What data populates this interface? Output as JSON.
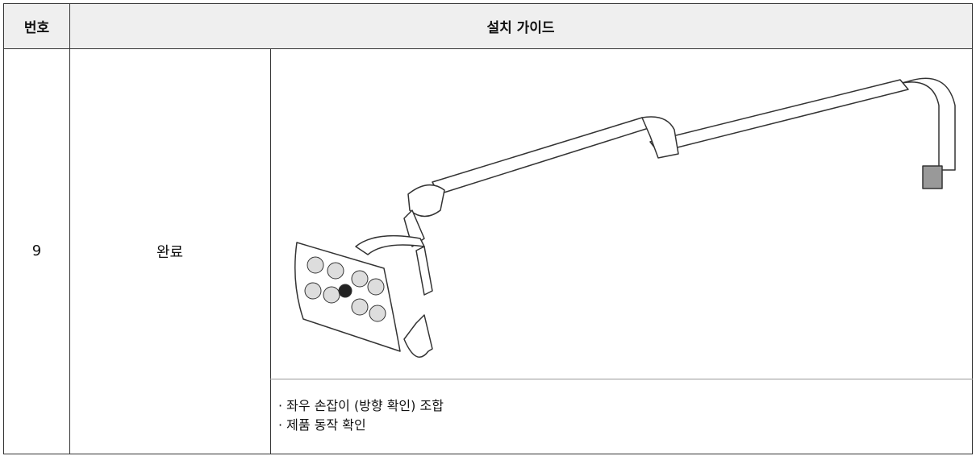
{
  "table": {
    "header": [
      "번호",
      "설치 가이드"
    ],
    "rows": [
      {
        "number": "9",
        "step": "완료",
        "notes": [
          "· 좌우 손잡이 (방향 확인) 조합",
          "· 제품 동작 확인"
        ]
      }
    ]
  }
}
